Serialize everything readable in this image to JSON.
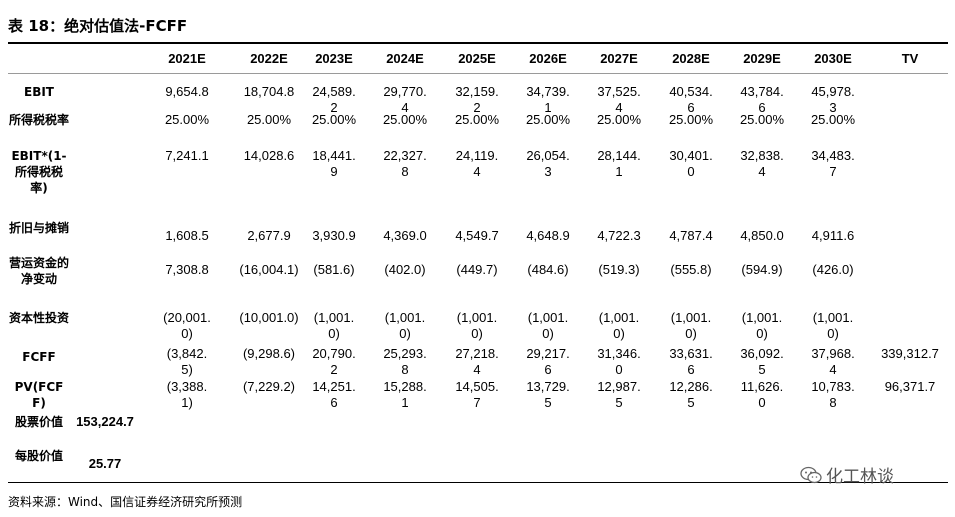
{
  "title": "表 18：绝对估值法-FCFF",
  "columns": [
    "2021E",
    "2022E",
    "2023E",
    "2024E",
    "2025E",
    "2026E",
    "2027E",
    "2028E",
    "2029E",
    "2030E",
    "TV"
  ],
  "rows": [
    {
      "label": "EBIT",
      "values": [
        "9,654.8",
        "18,704.8",
        "24,589.2",
        "29,770.4",
        "32,159.2",
        "34,739.1",
        "37,525.4",
        "40,534.6",
        "43,784.6",
        "45,978.3",
        ""
      ]
    },
    {
      "label": "所得税税率",
      "values": [
        "25.00%",
        "25.00%",
        "25.00%",
        "25.00%",
        "25.00%",
        "25.00%",
        "25.00%",
        "25.00%",
        "25.00%",
        "25.00%",
        ""
      ]
    },
    {
      "label": "EBIT*(1-所得税税率)",
      "values": [
        "7,241.1",
        "14,028.6",
        "18,441.9",
        "22,327.8",
        "24,119.4",
        "26,054.3",
        "28,144.1",
        "30,401.0",
        "32,838.4",
        "34,483.7",
        ""
      ]
    },
    {
      "label": "折旧与摊销",
      "values": [
        "1,608.5",
        "2,677.9",
        "3,930.9",
        "4,369.0",
        "4,549.7",
        "4,648.9",
        "4,722.3",
        "4,787.4",
        "4,850.0",
        "4,911.6",
        ""
      ]
    },
    {
      "label": "营运资金的净变动",
      "values": [
        "7,308.8",
        "(16,004.1)",
        "(581.6)",
        "(402.0)",
        "(449.7)",
        "(484.6)",
        "(519.3)",
        "(555.8)",
        "(594.9)",
        "(426.0)",
        ""
      ]
    },
    {
      "label": "资本性投资",
      "values": [
        "(20,001.0)",
        "(10,001.0)",
        "(1,001.0)",
        "(1,001.0)",
        "(1,001.0)",
        "(1,001.0)",
        "(1,001.0)",
        "(1,001.0)",
        "(1,001.0)",
        "(1,001.0)",
        ""
      ]
    },
    {
      "label": "FCFF",
      "values": [
        "(3,842.5)",
        "(9,298.6)",
        "20,790.2",
        "25,293.8",
        "27,218.4",
        "29,217.6",
        "31,346.0",
        "33,631.6",
        "36,092.5",
        "37,968.4",
        "339,312.7"
      ]
    },
    {
      "label": "PV(FCFF)",
      "values": [
        "(3,388.1)",
        "(7,229.2)",
        "14,251.6",
        "15,288.1",
        "14,505.7",
        "13,729.5",
        "12,987.5",
        "12,286.5",
        "11,626.0",
        "10,783.8",
        "96,371.7"
      ]
    }
  ],
  "equity_value": {
    "label": "股票价值",
    "value": "153,224.7"
  },
  "per_share_value": {
    "label": "每股价值",
    "value": "25.77"
  },
  "source": "资料来源：Wind、国信证券经济研究所预测",
  "watermark": "化工林谈"
}
